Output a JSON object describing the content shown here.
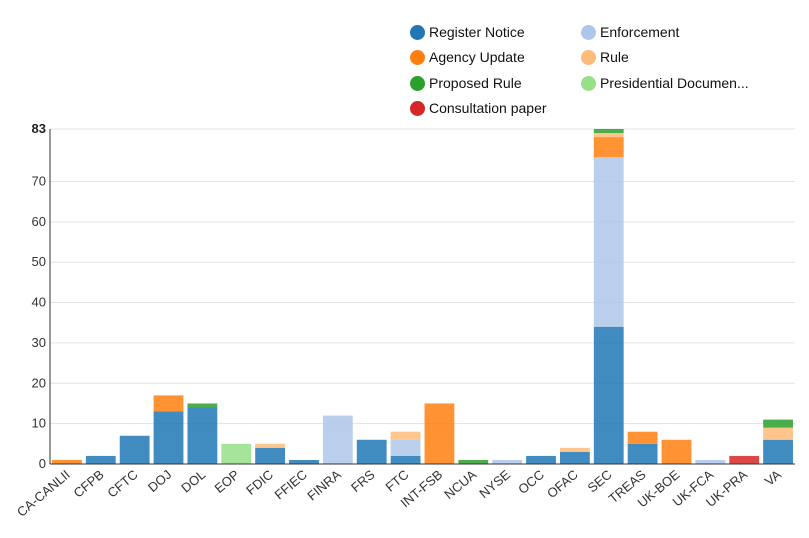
{
  "chart_data": {
    "type": "bar",
    "stacked": true,
    "categories": [
      "CA-CANLII",
      "CFPB",
      "CFTC",
      "DOJ",
      "DOL",
      "EOP",
      "FDIC",
      "FFIEC",
      "FINRA",
      "FRS",
      "FTC",
      "INT-FSB",
      "NCUA",
      "NYSE",
      "OCC",
      "OFAC",
      "SEC",
      "TREAS",
      "UK-BOE",
      "UK-FCA",
      "UK-PRA",
      "VA"
    ],
    "ylim": [
      0,
      83
    ],
    "yticks": [
      0,
      10,
      20,
      30,
      40,
      50,
      60,
      70,
      83
    ],
    "ytick_labels": [
      "0",
      "10",
      "20",
      "30",
      "40",
      "50",
      "60",
      "70",
      "83"
    ],
    "grid": true,
    "legend_position": "top",
    "series": [
      {
        "name": "Register Notice",
        "color": "#1f77b4",
        "values": [
          0,
          2,
          7,
          13,
          14,
          0,
          4,
          1,
          0,
          6,
          2,
          0,
          0,
          0,
          2,
          3,
          34,
          5,
          0,
          0,
          0,
          6
        ]
      },
      {
        "name": "Enforcement",
        "color": "#aec7e8",
        "values": [
          0,
          0,
          0,
          0,
          0,
          0,
          0,
          0,
          12,
          0,
          4,
          0,
          0,
          1,
          0,
          0,
          42,
          0,
          0,
          1,
          0,
          0
        ]
      },
      {
        "name": "Agency Update",
        "color": "#ff7f0e",
        "values": [
          1,
          0,
          0,
          4,
          0,
          0,
          0,
          0,
          0,
          0,
          0,
          15,
          0,
          0,
          0,
          0,
          5,
          3,
          6,
          0,
          0,
          0
        ]
      },
      {
        "name": "Rule",
        "color": "#ffbb78",
        "values": [
          0,
          0,
          0,
          0,
          0,
          0,
          1,
          0,
          0,
          0,
          2,
          0,
          0,
          0,
          0,
          1,
          1,
          0,
          0,
          0,
          0,
          3
        ]
      },
      {
        "name": "Proposed Rule",
        "color": "#2ca02c",
        "values": [
          0,
          0,
          0,
          0,
          1,
          0,
          0,
          0,
          0,
          0,
          0,
          0,
          1,
          0,
          0,
          0,
          1,
          0,
          0,
          0,
          0,
          2
        ]
      },
      {
        "name": "Presidential Documen...",
        "color": "#98df8a",
        "values": [
          0,
          0,
          0,
          0,
          0,
          5,
          0,
          0,
          0,
          0,
          0,
          0,
          0,
          0,
          0,
          0,
          0,
          0,
          0,
          0,
          0,
          0
        ]
      },
      {
        "name": "Consultation paper",
        "color": "#d62728",
        "values": [
          0,
          0,
          0,
          0,
          0,
          0,
          0,
          0,
          0,
          0,
          0,
          0,
          0,
          0,
          0,
          0,
          0,
          0,
          0,
          0,
          2,
          0
        ]
      }
    ]
  }
}
